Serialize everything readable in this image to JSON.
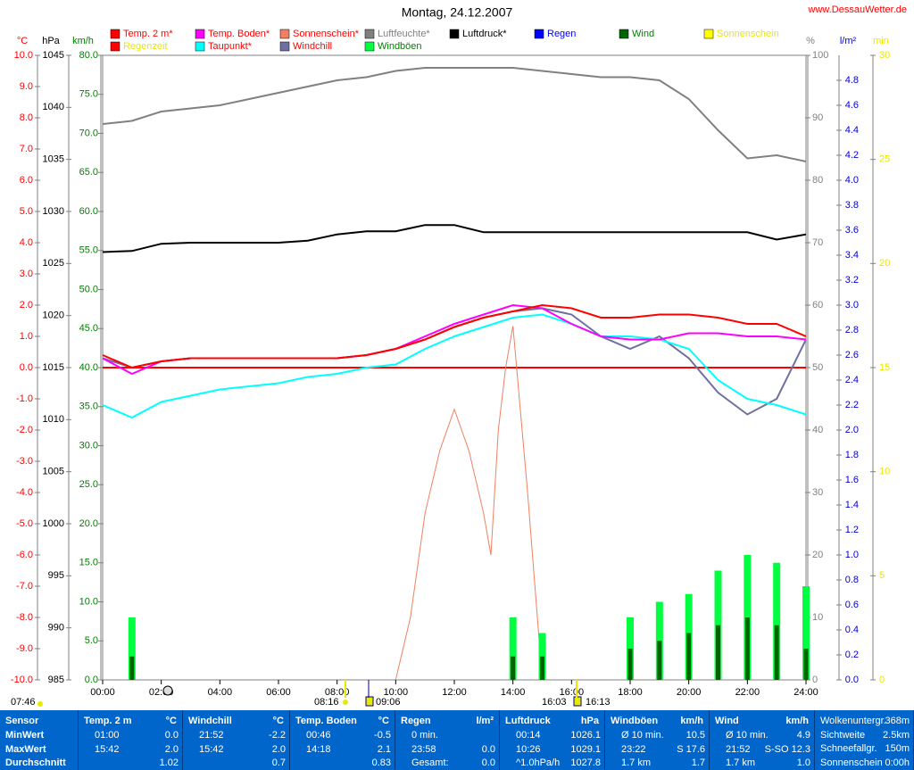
{
  "chart_data": {
    "type": "line",
    "title": "Montag, 24.12.2007",
    "source": "www.DessauWetter.de",
    "x": [
      0,
      1,
      2,
      3,
      4,
      5,
      6,
      7,
      8,
      9,
      10,
      11,
      12,
      13,
      14,
      15,
      16,
      17,
      18,
      19,
      20,
      21,
      22,
      23,
      24
    ],
    "xlim": [
      0,
      24
    ],
    "xticks": [
      {
        "value": 0,
        "label": "00:00"
      },
      {
        "value": 2,
        "label": "02:00"
      },
      {
        "value": 4,
        "label": "04:00"
      },
      {
        "value": 6,
        "label": "06:00"
      },
      {
        "value": 8,
        "label": "08:00"
      },
      {
        "value": 10,
        "label": "10:00"
      },
      {
        "value": 12,
        "label": "12:00"
      },
      {
        "value": 14,
        "label": "14:00"
      },
      {
        "value": 16,
        "label": "16:00"
      },
      {
        "value": 18,
        "label": "18:00"
      },
      {
        "value": 20,
        "label": "20:00"
      },
      {
        "value": 22,
        "label": "22:00"
      },
      {
        "value": 24,
        "label": "24:00"
      }
    ],
    "zero_line": true,
    "axes": {
      "y": {
        "label": "°C",
        "color": "#ff0000",
        "lim": [
          -10,
          10
        ],
        "ticks": [
          {
            "value": -10,
            "label": "-10.0"
          },
          {
            "value": -9,
            "label": "-9.0"
          },
          {
            "value": -8,
            "label": "-8.0"
          },
          {
            "value": -7,
            "label": "-7.0"
          },
          {
            "value": -6,
            "label": "-6.0"
          },
          {
            "value": -5,
            "label": "-5.0"
          },
          {
            "value": -4,
            "label": "-4.0"
          },
          {
            "value": -3,
            "label": "-3.0"
          },
          {
            "value": -2,
            "label": "-2.0"
          },
          {
            "value": -1,
            "label": "-1.0"
          },
          {
            "value": 0,
            "label": "0.0"
          },
          {
            "value": 1,
            "label": "1.0"
          },
          {
            "value": 2,
            "label": "2.0"
          },
          {
            "value": 3,
            "label": "3.0"
          },
          {
            "value": 4,
            "label": "4.0"
          },
          {
            "value": 5,
            "label": "5.0"
          },
          {
            "value": 6,
            "label": "6.0"
          },
          {
            "value": 7,
            "label": "7.0"
          },
          {
            "value": 8,
            "label": "8.0"
          },
          {
            "value": 9,
            "label": "9.0"
          },
          {
            "value": 10,
            "label": "10.0"
          }
        ]
      },
      "y2": {
        "label": "hPa",
        "color": "#000000",
        "lim": [
          985,
          1045
        ],
        "ticks": [
          985,
          990,
          995,
          1000,
          1005,
          1010,
          1015,
          1020,
          1025,
          1030,
          1035,
          1040,
          1045
        ]
      },
      "y3": {
        "label": "km/h",
        "color": "#008000",
        "lim": [
          0,
          80
        ],
        "ticks": [
          {
            "value": 0,
            "label": "0.0"
          },
          {
            "value": 5,
            "label": "5.0"
          },
          {
            "value": 10,
            "label": "10.0"
          },
          {
            "value": 15,
            "label": "15.0"
          },
          {
            "value": 20,
            "label": "20.0"
          },
          {
            "value": 25,
            "label": "25.0"
          },
          {
            "value": 30,
            "label": "30.0"
          },
          {
            "value": 35,
            "label": "35.0"
          },
          {
            "value": 40,
            "label": "40.0"
          },
          {
            "value": 45,
            "label": "45.0"
          },
          {
            "value": 50,
            "label": "50.0"
          },
          {
            "value": 55,
            "label": "55.0"
          },
          {
            "value": 60,
            "label": "60.0"
          },
          {
            "value": 65,
            "label": "65.0"
          },
          {
            "value": 70,
            "label": "70.0"
          },
          {
            "value": 75,
            "label": "75.0"
          },
          {
            "value": 80,
            "label": "80.0"
          }
        ]
      },
      "y4": {
        "label": "%",
        "color": "#808080",
        "lim": [
          0,
          100
        ],
        "ticks": [
          0,
          10,
          20,
          30,
          40,
          50,
          60,
          70,
          80,
          90,
          100
        ]
      },
      "y5": {
        "label": "l/m²",
        "color": "#0000cc",
        "lim": [
          0,
          5
        ],
        "ticks": [
          {
            "value": 0,
            "label": "0.0"
          },
          {
            "value": 0.2,
            "label": "0.2"
          },
          {
            "value": 0.4,
            "label": "0.4"
          },
          {
            "value": 0.6,
            "label": "0.6"
          },
          {
            "value": 0.8,
            "label": "0.8"
          },
          {
            "value": 1,
            "label": "1.0"
          },
          {
            "value": 1.2,
            "label": "1.2"
          },
          {
            "value": 1.4,
            "label": "1.4"
          },
          {
            "value": 1.6,
            "label": "1.6"
          },
          {
            "value": 1.8,
            "label": "1.8"
          },
          {
            "value": 2,
            "label": "2.0"
          },
          {
            "value": 2.2,
            "label": "2.2"
          },
          {
            "value": 2.4,
            "label": "2.4"
          },
          {
            "value": 2.6,
            "label": "2.6"
          },
          {
            "value": 2.8,
            "label": "2.8"
          },
          {
            "value": 3,
            "label": "3.0"
          },
          {
            "value": 3.2,
            "label": "3.2"
          },
          {
            "value": 3.4,
            "label": "3.4"
          },
          {
            "value": 3.6,
            "label": "3.6"
          },
          {
            "value": 3.8,
            "label": "3.8"
          },
          {
            "value": 4,
            "label": "4.0"
          },
          {
            "value": 4.2,
            "label": "4.2"
          },
          {
            "value": 4.4,
            "label": "4.4"
          },
          {
            "value": 4.6,
            "label": "4.6"
          },
          {
            "value": 4.8,
            "label": "4.8"
          }
        ]
      },
      "y6": {
        "label": "min",
        "color": "#e8e800",
        "lim": [
          0,
          30
        ],
        "ticks": [
          0,
          5,
          10,
          15,
          20,
          25,
          30
        ]
      }
    },
    "series": [
      {
        "name": "Temp. 2 m*",
        "color": "#ff0000",
        "label_color": "#ff0000",
        "axis": "y",
        "kind": "line",
        "values": [
          0.4,
          0.0,
          0.2,
          0.3,
          0.3,
          0.3,
          0.3,
          0.3,
          0.3,
          0.4,
          0.6,
          0.9,
          1.3,
          1.6,
          1.8,
          2.0,
          1.9,
          1.6,
          1.6,
          1.7,
          1.7,
          1.6,
          1.4,
          1.4,
          1.0
        ]
      },
      {
        "name": "Temp. Boden*",
        "color": "#ff00ff",
        "label_color": "#ff0000",
        "axis": "y",
        "kind": "line",
        "values": [
          0.3,
          -0.2,
          0.2,
          0.3,
          0.3,
          0.3,
          0.3,
          0.3,
          0.3,
          0.4,
          0.6,
          1.0,
          1.4,
          1.7,
          2.0,
          1.9,
          1.4,
          1.0,
          0.9,
          0.9,
          1.1,
          1.1,
          1.0,
          1.0,
          0.9
        ]
      },
      {
        "name": "Sonnenschein*",
        "color": "#f08060",
        "label_color": "#ff0000",
        "axis": "y6",
        "kind": "line",
        "x": [
          10,
          10.5,
          11,
          11.5,
          12,
          12.5,
          13,
          13.25,
          13.5,
          13.75,
          14,
          14.5,
          15
        ],
        "values": [
          0,
          3,
          8,
          11,
          13,
          11,
          8,
          6,
          12,
          15,
          17,
          9,
          0
        ]
      },
      {
        "name": "Luftfeuchte*",
        "color": "#808080",
        "label_color": "#808080",
        "axis": "y4",
        "kind": "line",
        "values": [
          89,
          89.5,
          91,
          91.5,
          92,
          93,
          94,
          95,
          96,
          96.5,
          97.5,
          98,
          98,
          98,
          98,
          97.5,
          97,
          96.5,
          96.5,
          96,
          93,
          88,
          83.5,
          84,
          83
        ]
      },
      {
        "name": "Luftdruck*",
        "color": "#000000",
        "label_color": "#000000",
        "axis": "y2",
        "kind": "line",
        "values": [
          1026.1,
          1026.2,
          1026.9,
          1027.0,
          1027.0,
          1027.0,
          1027.0,
          1027.2,
          1027.8,
          1028.1,
          1028.1,
          1028.7,
          1028.7,
          1028.0,
          1028.0,
          1028.0,
          1028.0,
          1028.0,
          1028.0,
          1028.0,
          1028.0,
          1028.0,
          1028.0,
          1027.3,
          1027.8
        ]
      },
      {
        "name": "Wind",
        "color": "#006400",
        "label_color": "#008000",
        "axis": "y3",
        "kind": "bar",
        "values": [
          0,
          3,
          0,
          0,
          0,
          0,
          0,
          0,
          0,
          0,
          0,
          0,
          0,
          0,
          3,
          3,
          0,
          0,
          4,
          5,
          6,
          7,
          8,
          7,
          4
        ]
      },
      {
        "name": "Taupunkt*",
        "color": "#00ffff",
        "label_color": "#ff0000",
        "axis": "y",
        "kind": "line",
        "values": [
          -1.2,
          -1.6,
          -1.1,
          -0.9,
          -0.7,
          -0.6,
          -0.5,
          -0.3,
          -0.2,
          0.0,
          0.1,
          0.6,
          1.0,
          1.3,
          1.6,
          1.7,
          1.4,
          1.0,
          1.0,
          0.9,
          0.6,
          -0.4,
          -1.0,
          -1.2,
          -1.5
        ]
      },
      {
        "name": "Windchill",
        "color": "#7070a0",
        "label_color": "#ff0000",
        "axis": "y",
        "kind": "line",
        "values": [
          0.3,
          0.0,
          0.2,
          0.3,
          0.3,
          0.3,
          0.3,
          0.3,
          0.3,
          0.4,
          0.6,
          0.9,
          1.3,
          1.6,
          1.8,
          1.9,
          1.7,
          1.0,
          0.6,
          1.0,
          0.3,
          -0.8,
          -1.5,
          -1.0,
          0.9
        ]
      },
      {
        "name": "Windböen",
        "color": "#00ff40",
        "label_color": "#008000",
        "axis": "y3",
        "kind": "bar",
        "values": [
          0,
          8,
          0,
          0,
          0,
          0,
          0,
          0,
          0,
          0,
          0,
          0,
          0,
          0,
          8,
          6,
          0,
          0,
          8,
          10,
          11,
          14,
          16,
          15,
          12
        ]
      }
    ],
    "legend_only": [
      {
        "name": "Regen",
        "color": "#0000ff",
        "label_color": "#0000ff"
      },
      {
        "name": "Sonnenschein",
        "color": "#ffff00",
        "label_color": "#e8e800"
      },
      {
        "name": "Regenzeit",
        "color": "#ff0000",
        "label_color": "#e8e800"
      }
    ],
    "annotations": [
      "07:46",
      "08:16",
      "09:06",
      "16:03",
      "16:13"
    ]
  },
  "table": {
    "columns": [
      {
        "title": "Sensor",
        "rows": [
          {
            "time": "MinWert"
          },
          {
            "time": "MaxWert"
          },
          {
            "time": "Durchschnitt"
          }
        ]
      },
      {
        "title": "Temp. 2 m",
        "unit": "°C",
        "rows": [
          {
            "time": "01:00",
            "value": "0.0"
          },
          {
            "time": "15:42",
            "value": "2.0"
          },
          {
            "value": "1.02"
          }
        ]
      },
      {
        "title": "Windchill",
        "unit": "°C",
        "rows": [
          {
            "time": "21:52",
            "value": "-2.2"
          },
          {
            "time": "15:42",
            "value": "2.0"
          },
          {
            "value": "0.7"
          }
        ]
      },
      {
        "title": "Temp. Boden",
        "unit": "°C",
        "rows": [
          {
            "time": "00:46",
            "value": "-0.5"
          },
          {
            "time": "14:18",
            "value": "2.1"
          },
          {
            "value": "0.83"
          }
        ]
      },
      {
        "title": "Regen",
        "unit": "l/m²",
        "rows": [
          {
            "time": "0 min."
          },
          {
            "time": "23:58",
            "value": "0.0"
          },
          {
            "time": "Gesamt:",
            "value": "0.0"
          }
        ]
      },
      {
        "title": "Luftdruck",
        "unit": "hPa",
        "rows": [
          {
            "time": "00:14",
            "value": "1026.1"
          },
          {
            "time": "10:26",
            "value": "1029.1"
          },
          {
            "time": "^1.0hPa/h",
            "value": "1027.8"
          }
        ]
      },
      {
        "title": "Windböen",
        "unit": "km/h",
        "rows": [
          {
            "time": "Ø 10 min.",
            "value": "10.5"
          },
          {
            "time": "23:22",
            "value": "S 17.6"
          },
          {
            "time": "1.7 km",
            "value": "1.7"
          }
        ]
      },
      {
        "title": "Wind",
        "unit": "km/h",
        "rows": [
          {
            "time": "Ø 10 min.",
            "value": "4.9"
          },
          {
            "time": "21:52",
            "value": "S-SO 12.3"
          },
          {
            "time": "1.7 km",
            "value": "1.0"
          }
        ]
      },
      {
        "rows": [
          {
            "time": "Wolkenuntergr.",
            "value": "368m"
          },
          {
            "time": "Sichtweite",
            "value": "2.5km"
          },
          {
            "time": "Schneefallgr.",
            "value": "150m"
          },
          {
            "time": "Sonnenschein",
            "value": "0:00h"
          }
        ]
      }
    ]
  }
}
